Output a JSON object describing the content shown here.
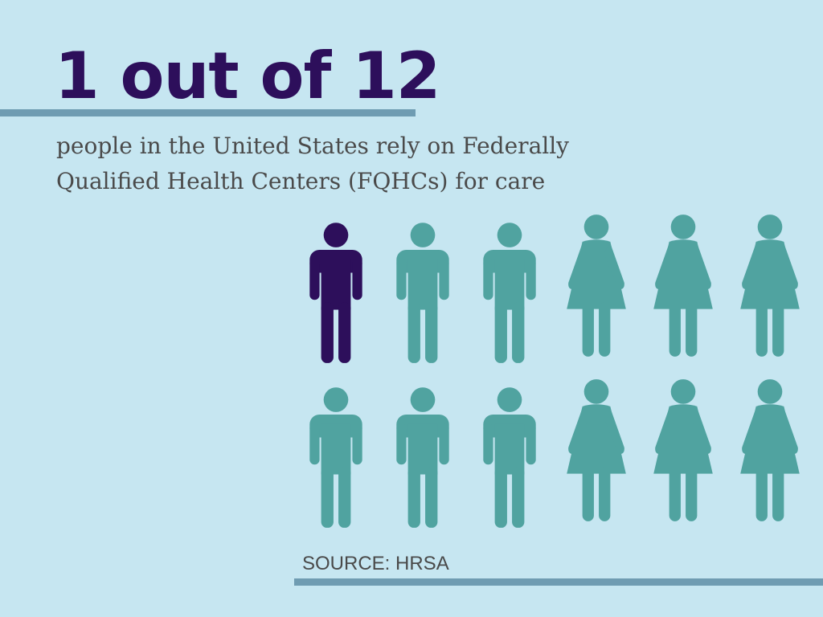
{
  "headline": "1 out of 12",
  "subtitle": "people in the United States rely on Federally Qualified Health Centers (FQHCs) for care",
  "source": "SOURCE: HRSA",
  "colors": {
    "background": "#c6e6f1",
    "highlight": "#2d0f5b",
    "figure": "#50a3a0",
    "rule": "#6f9cb2",
    "text": "#4a4a4a"
  },
  "icon_grid": {
    "highlighted_count": 1,
    "total_count": 12,
    "rows": [
      [
        "male-person-icon",
        "male-person-icon",
        "male-person-icon",
        "female-person-icon",
        "female-person-icon",
        "female-person-icon"
      ],
      [
        "male-person-icon",
        "male-person-icon",
        "male-person-icon",
        "female-person-icon",
        "female-person-icon",
        "female-person-icon"
      ]
    ]
  }
}
